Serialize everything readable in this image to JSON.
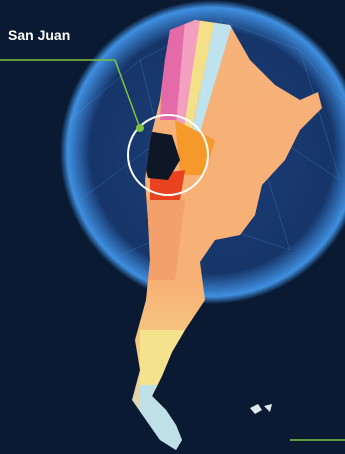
{
  "map": {
    "label": "San Juan"
  }
}
